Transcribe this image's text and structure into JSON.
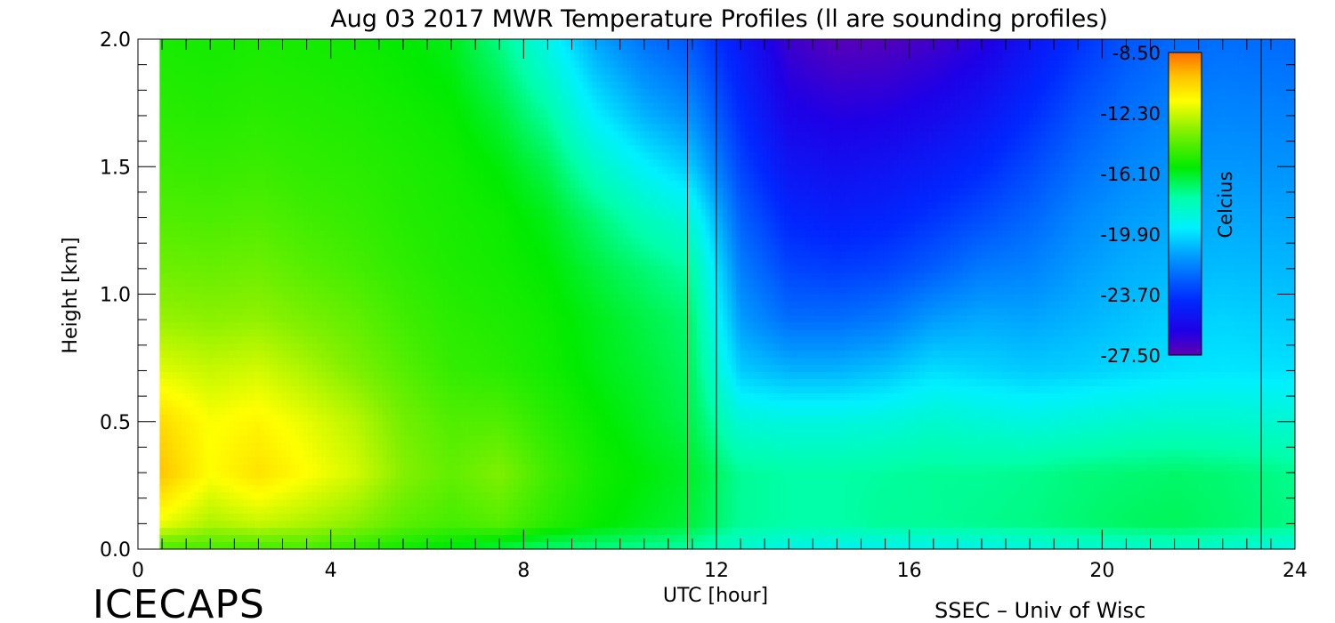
{
  "chart_data": {
    "type": "heatmap",
    "title": "Aug 03 2017 MWR Temperature Profiles (ll are sounding profiles)",
    "xlabel": "UTC [hour]",
    "ylabel": "Height [km]",
    "xlim": [
      0,
      24
    ],
    "ylim": [
      0,
      2
    ],
    "x_ticks": [
      0,
      4,
      8,
      12,
      16,
      20,
      24
    ],
    "y_ticks": [
      "0.0",
      "0.5",
      "1.0",
      "1.5",
      "2.0"
    ],
    "data_start_hour": 0.45,
    "colorbar": {
      "label": "Celcius",
      "range": [
        -27.5,
        -8.5
      ],
      "ticks": [
        "-8.50",
        "-12.30",
        "-16.10",
        "-19.90",
        "-23.70",
        "-27.50"
      ]
    },
    "sounding_profiles_hours": [
      11.4,
      12.0,
      23.3
    ],
    "temperature_grid": {
      "units": "Celsius",
      "hours": [
        0.45,
        1.5,
        2.5,
        3.5,
        4.5,
        5.5,
        6.5,
        7.5,
        8.5,
        9.5,
        10.5,
        11.5,
        12.5,
        13.5,
        14.5,
        15.5,
        16.5,
        17.5,
        18.5,
        19.5,
        20.5,
        21.5,
        22.5,
        24.0
      ],
      "heights_km": [
        0.0,
        0.1,
        0.3,
        0.5,
        0.7,
        0.9,
        1.1,
        1.3,
        1.5,
        1.7,
        1.9,
        2.0
      ],
      "values": [
        [
          -14.5,
          -14.5,
          -14.6,
          -14.5,
          -15.0,
          -15.5,
          -16.0,
          -16.5,
          -17.0,
          -17.2,
          -17.4,
          -17.6,
          -18.5,
          -19.0,
          -19.2,
          -19.2,
          -19.1,
          -19.1,
          -18.8,
          -18.6,
          -18.5,
          -18.3,
          -18.5,
          -18.8
        ],
        [
          -11.8,
          -12.8,
          -12.4,
          -12.8,
          -13.3,
          -14.1,
          -14.5,
          -14.2,
          -15.0,
          -15.6,
          -16.0,
          -16.4,
          -17.4,
          -17.6,
          -17.6,
          -17.4,
          -17.4,
          -17.3,
          -17.2,
          -17.0,
          -16.8,
          -16.7,
          -16.9,
          -17.2
        ],
        [
          -10.0,
          -11.5,
          -10.8,
          -11.5,
          -12.2,
          -13.4,
          -14.0,
          -13.5,
          -14.6,
          -15.4,
          -15.8,
          -16.2,
          -17.4,
          -17.6,
          -17.6,
          -17.5,
          -17.4,
          -17.4,
          -17.3,
          -17.1,
          -17.0,
          -16.9,
          -17.0,
          -17.3
        ],
        [
          -10.6,
          -11.6,
          -11.3,
          -11.9,
          -12.6,
          -13.7,
          -14.3,
          -14.3,
          -15.0,
          -15.6,
          -16.1,
          -16.6,
          -18.6,
          -18.8,
          -18.8,
          -18.7,
          -18.4,
          -18.6,
          -18.8,
          -18.6,
          -18.4,
          -18.3,
          -18.4,
          -18.5
        ],
        [
          -12.0,
          -12.4,
          -12.2,
          -12.8,
          -13.5,
          -14.2,
          -14.8,
          -15.0,
          -15.4,
          -15.9,
          -16.3,
          -16.8,
          -20.3,
          -20.8,
          -20.8,
          -20.5,
          -19.9,
          -20.1,
          -20.3,
          -20.2,
          -20.0,
          -19.8,
          -19.7,
          -19.8
        ],
        [
          -13.1,
          -13.3,
          -13.2,
          -13.6,
          -14.0,
          -14.6,
          -15.0,
          -15.2,
          -15.5,
          -16.0,
          -16.5,
          -17.0,
          -21.3,
          -22.4,
          -22.4,
          -22.1,
          -21.3,
          -21.0,
          -21.1,
          -20.8,
          -20.5,
          -20.2,
          -20.1,
          -20.3
        ],
        [
          -13.8,
          -13.9,
          -13.8,
          -14.2,
          -14.5,
          -14.9,
          -15.2,
          -15.4,
          -15.7,
          -16.4,
          -17.0,
          -17.6,
          -22.0,
          -23.4,
          -23.6,
          -23.4,
          -22.8,
          -22.1,
          -21.9,
          -21.3,
          -20.9,
          -20.7,
          -20.6,
          -20.7
        ],
        [
          -14.3,
          -14.4,
          -14.3,
          -14.6,
          -14.8,
          -15.1,
          -15.3,
          -15.5,
          -16.0,
          -17.0,
          -18.0,
          -18.8,
          -22.7,
          -24.2,
          -24.5,
          -24.3,
          -23.8,
          -23.2,
          -22.6,
          -21.8,
          -21.3,
          -21.1,
          -21.0,
          -21.1
        ],
        [
          -14.7,
          -14.8,
          -14.7,
          -14.9,
          -15.0,
          -15.2,
          -15.4,
          -15.8,
          -16.6,
          -18.2,
          -19.4,
          -20.4,
          -23.4,
          -25.0,
          -25.3,
          -25.1,
          -24.7,
          -24.1,
          -23.3,
          -22.4,
          -21.8,
          -21.5,
          -21.4,
          -21.5
        ],
        [
          -15.0,
          -15.1,
          -15.0,
          -15.1,
          -15.2,
          -15.4,
          -15.6,
          -16.3,
          -17.5,
          -19.5,
          -20.8,
          -21.6,
          -24.0,
          -25.8,
          -26.1,
          -26.0,
          -25.6,
          -25.0,
          -24.0,
          -23.0,
          -22.3,
          -21.9,
          -21.8,
          -21.9
        ],
        [
          -15.2,
          -15.3,
          -15.2,
          -15.3,
          -15.4,
          -15.6,
          -15.9,
          -16.9,
          -18.5,
          -20.6,
          -21.8,
          -22.6,
          -24.5,
          -26.4,
          -26.9,
          -26.8,
          -26.4,
          -25.8,
          -24.7,
          -23.6,
          -22.8,
          -22.3,
          -22.2,
          -22.3
        ],
        [
          -15.3,
          -15.4,
          -15.3,
          -15.4,
          -15.5,
          -15.7,
          -16.0,
          -17.2,
          -19.0,
          -21.1,
          -22.3,
          -23.0,
          -24.8,
          -26.7,
          -27.3,
          -27.2,
          -26.8,
          -26.2,
          -25.0,
          -23.9,
          -23.0,
          -22.5,
          -22.4,
          -22.5
        ]
      ]
    }
  },
  "branding": {
    "logo_text": "ICECAPS",
    "credit": "SSEC – Univ of Wisc"
  }
}
